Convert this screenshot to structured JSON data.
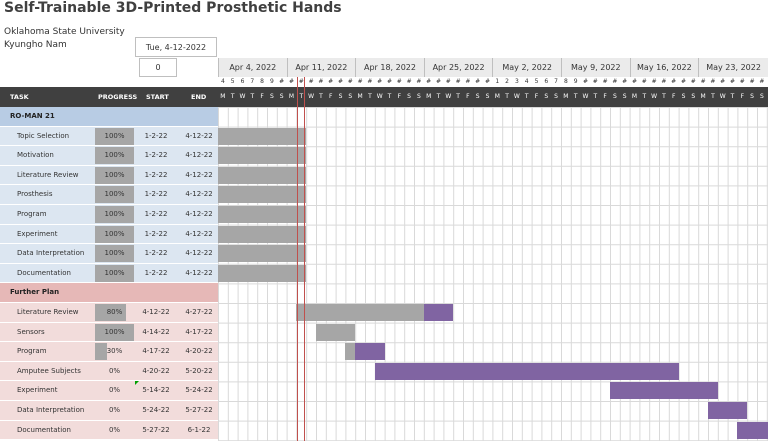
{
  "title": "Self-Trainable 3D-Printed Prosthetic Hands",
  "org": "Oklahoma State University",
  "author": "Kyungho Nam",
  "project_start": "Tue, 4-12-2022",
  "display_week": "0",
  "weeks": [
    "Apr 4, 2022",
    "Apr 11, 2022",
    "Apr 18, 2022",
    "Apr 25, 2022",
    "May 2, 2022",
    "May 9, 2022",
    "May 16, 2022",
    "May 23, 2022"
  ],
  "day_numbers": [
    "4",
    "5",
    "6",
    "7",
    "8",
    "9",
    "#",
    "#",
    "#",
    "#",
    "#",
    "#",
    "#",
    "#",
    "#",
    "#",
    "#",
    "#",
    "#",
    "#",
    "#",
    "#",
    "#",
    "#",
    "#",
    "#",
    "#",
    "#",
    "1",
    "2",
    "3",
    "4",
    "5",
    "6",
    "7",
    "8",
    "9",
    "#",
    "#",
    "#",
    "#",
    "#",
    "#",
    "#",
    "#",
    "#",
    "#",
    "#",
    "#",
    "#",
    "#",
    "#",
    "#",
    "#",
    "#",
    "#"
  ],
  "day_letters": [
    "M",
    "T",
    "W",
    "T",
    "F",
    "S",
    "S"
  ],
  "header": {
    "task": "TASK",
    "progress": "PROGRESS",
    "start": "START",
    "end": "END"
  },
  "colors": {
    "done": "#a6a6a6",
    "plan": "#8064a2",
    "today": "#c0504d"
  },
  "groups": [
    {
      "name": "RO-MAN 21",
      "tasks": [
        {
          "name": "Topic Selection",
          "progress": "100%",
          "pct": 1.0,
          "start": "1-2-22",
          "end": "4-12-22"
        },
        {
          "name": "Motivation",
          "progress": "100%",
          "pct": 1.0,
          "start": "1-2-22",
          "end": "4-12-22"
        },
        {
          "name": "Literature Review",
          "progress": "100%",
          "pct": 1.0,
          "start": "1-2-22",
          "end": "4-12-22"
        },
        {
          "name": "Prosthesis",
          "progress": "100%",
          "pct": 1.0,
          "start": "1-2-22",
          "end": "4-12-22"
        },
        {
          "name": "Program",
          "progress": "100%",
          "pct": 1.0,
          "start": "1-2-22",
          "end": "4-12-22"
        },
        {
          "name": "Experiment",
          "progress": "100%",
          "pct": 1.0,
          "start": "1-2-22",
          "end": "4-12-22"
        },
        {
          "name": "Data Interpretation",
          "progress": "100%",
          "pct": 1.0,
          "start": "1-2-22",
          "end": "4-12-22"
        },
        {
          "name": "Documentation",
          "progress": "100%",
          "pct": 1.0,
          "start": "1-2-22",
          "end": "4-12-22"
        }
      ]
    },
    {
      "name": "Further Plan",
      "tasks": [
        {
          "name": "Literature Review",
          "progress": "80%",
          "pct": 0.8,
          "start": "4-12-22",
          "end": "4-27-22"
        },
        {
          "name": "Sensors",
          "progress": "100%",
          "pct": 1.0,
          "start": "4-14-22",
          "end": "4-17-22"
        },
        {
          "name": "Program",
          "progress": "30%",
          "pct": 0.3,
          "start": "4-17-22",
          "end": "4-20-22"
        },
        {
          "name": "Amputee Subjects",
          "progress": "0%",
          "pct": 0.0,
          "start": "4-20-22",
          "end": "5-20-22"
        },
        {
          "name": "Experiment",
          "progress": "0%",
          "pct": 0.0,
          "start": "5-14-22",
          "end": "5-24-22"
        },
        {
          "name": "Data Interpretation",
          "progress": "0%",
          "pct": 0.0,
          "start": "5-24-22",
          "end": "5-27-22"
        },
        {
          "name": "Documentation",
          "progress": "0%",
          "pct": 0.0,
          "start": "5-27-22",
          "end": "6-1-22"
        }
      ]
    }
  ]
}
